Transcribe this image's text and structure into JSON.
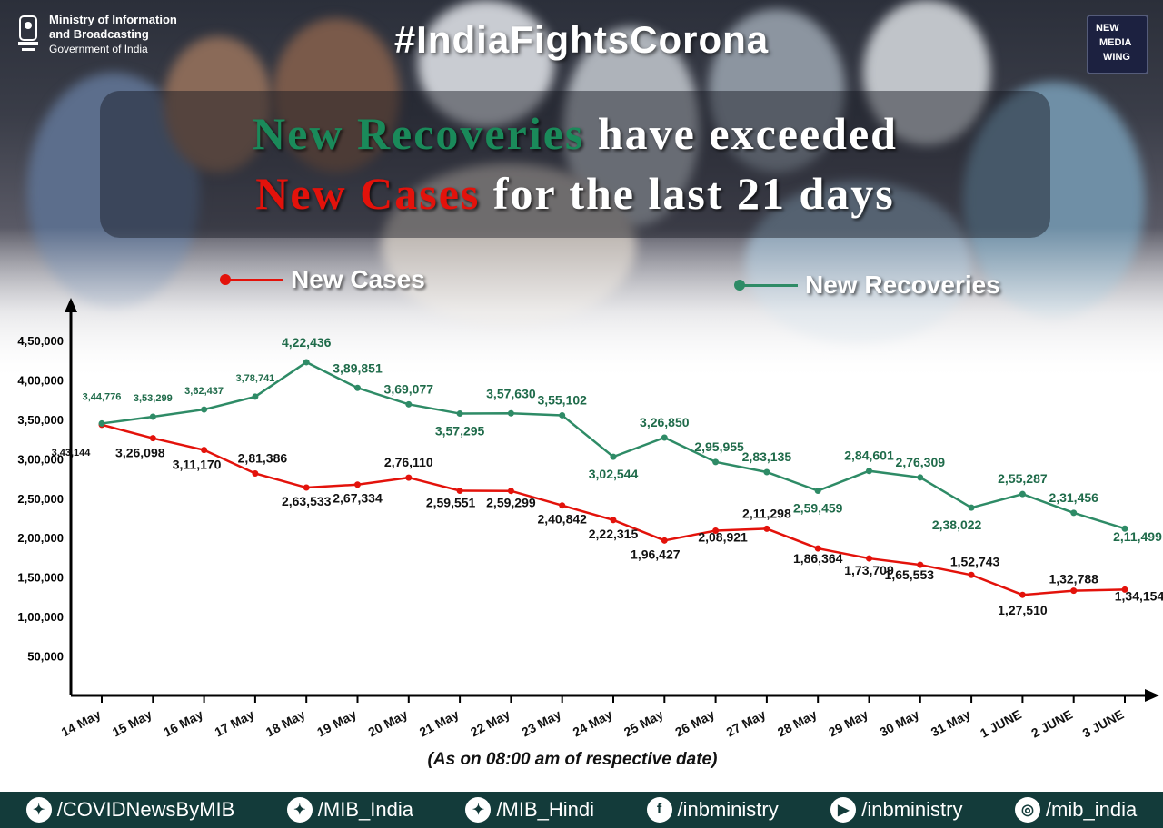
{
  "header": {
    "ministry": [
      "Ministry of Information",
      "and Broadcasting",
      "Government of India"
    ],
    "hashtag": "#IndiaFightsCorona",
    "badge": [
      "NEW",
      "MEDIA",
      "WING"
    ]
  },
  "headline": {
    "line1_highlight": "New Recoveries",
    "line1_rest": " have exceeded",
    "line2_highlight": "New Cases",
    "line2_rest": " for the last 21 days"
  },
  "colors": {
    "cases": "#e3120b",
    "recoveries": "#2e8b66",
    "recoveries_label": "#1f6b4a"
  },
  "chart_data": {
    "type": "line",
    "title": "New Recoveries have exceeded New Cases for the last 21 days",
    "x": [
      "14 May",
      "15 May",
      "16 May",
      "17 May",
      "18 May",
      "19 May",
      "20 May",
      "21 May",
      "22 May",
      "23 May",
      "24 May",
      "25 May",
      "26 May",
      "27 May",
      "28 May",
      "29 May",
      "30 May",
      "31 May",
      "1 JUNE",
      "2 JUNE",
      "3 JUNE"
    ],
    "series": [
      {
        "name": "New Cases",
        "values": [
          343144,
          326098,
          311170,
          281386,
          263533,
          267334,
          276110,
          259551,
          259299,
          240842,
          222315,
          196427,
          208921,
          211298,
          186364,
          173709,
          165553,
          152743,
          127510,
          132788,
          134154
        ],
        "labels": [
          "3,43,144",
          "3,26,098",
          "3,11,170",
          "2,81,386",
          "2,63,533",
          "2,67,334",
          "2,76,110",
          "2,59,551",
          "2,59,299",
          "2,40,842",
          "2,22,315",
          "1,96,427",
          "2,08,921",
          "2,11,298",
          "1,86,364",
          "1,73,709",
          "1,65,553",
          "1,52,743",
          "1,27,510",
          "1,32,788",
          "1,34,154"
        ]
      },
      {
        "name": "New Recoveries",
        "values": [
          344776,
          353299,
          362437,
          378741,
          422436,
          389851,
          369077,
          357295,
          357630,
          355102,
          302544,
          326850,
          295955,
          283135,
          259459,
          284601,
          276309,
          238022,
          255287,
          231456,
          211499
        ],
        "labels": [
          "3,44,776",
          "3,53,299",
          "3,62,437",
          "3,78,741",
          "4,22,436",
          "3,89,851",
          "3,69,077",
          "3,57,295",
          "3,57,630",
          "3,55,102",
          "3,02,544",
          "3,26,850",
          "2,95,955",
          "2,83,135",
          "2,59,459",
          "2,84,601",
          "2,76,309",
          "2,38,022",
          "2,55,287",
          "2,31,456",
          "2,11,499"
        ]
      }
    ],
    "yticks": [
      50000,
      100000,
      150000,
      200000,
      250000,
      300000,
      350000,
      400000,
      450000
    ],
    "ytick_labels": [
      "50,000",
      "1,00,000",
      "1,50,000",
      "2,00,000",
      "2,50,000",
      "3,00,000",
      "3,50,000",
      "4,00,000",
      "4,50,000"
    ],
    "ylim": [
      0,
      450000
    ],
    "xlabel": "(As on 08:00 am of respective date)",
    "ylabel": "",
    "grid": false,
    "legend": "top"
  },
  "footer": {
    "handles": [
      {
        "icon": "twitter-icon",
        "text": "/COVIDNewsByMIB"
      },
      {
        "icon": "twitter-icon",
        "text": "/MIB_India"
      },
      {
        "icon": "twitter-icon",
        "text": "/MIB_Hindi"
      },
      {
        "icon": "facebook-icon",
        "text": "/inbministry"
      },
      {
        "icon": "youtube-icon",
        "text": "/inbministry"
      },
      {
        "icon": "instagram-icon",
        "text": "/mib_india"
      }
    ]
  }
}
